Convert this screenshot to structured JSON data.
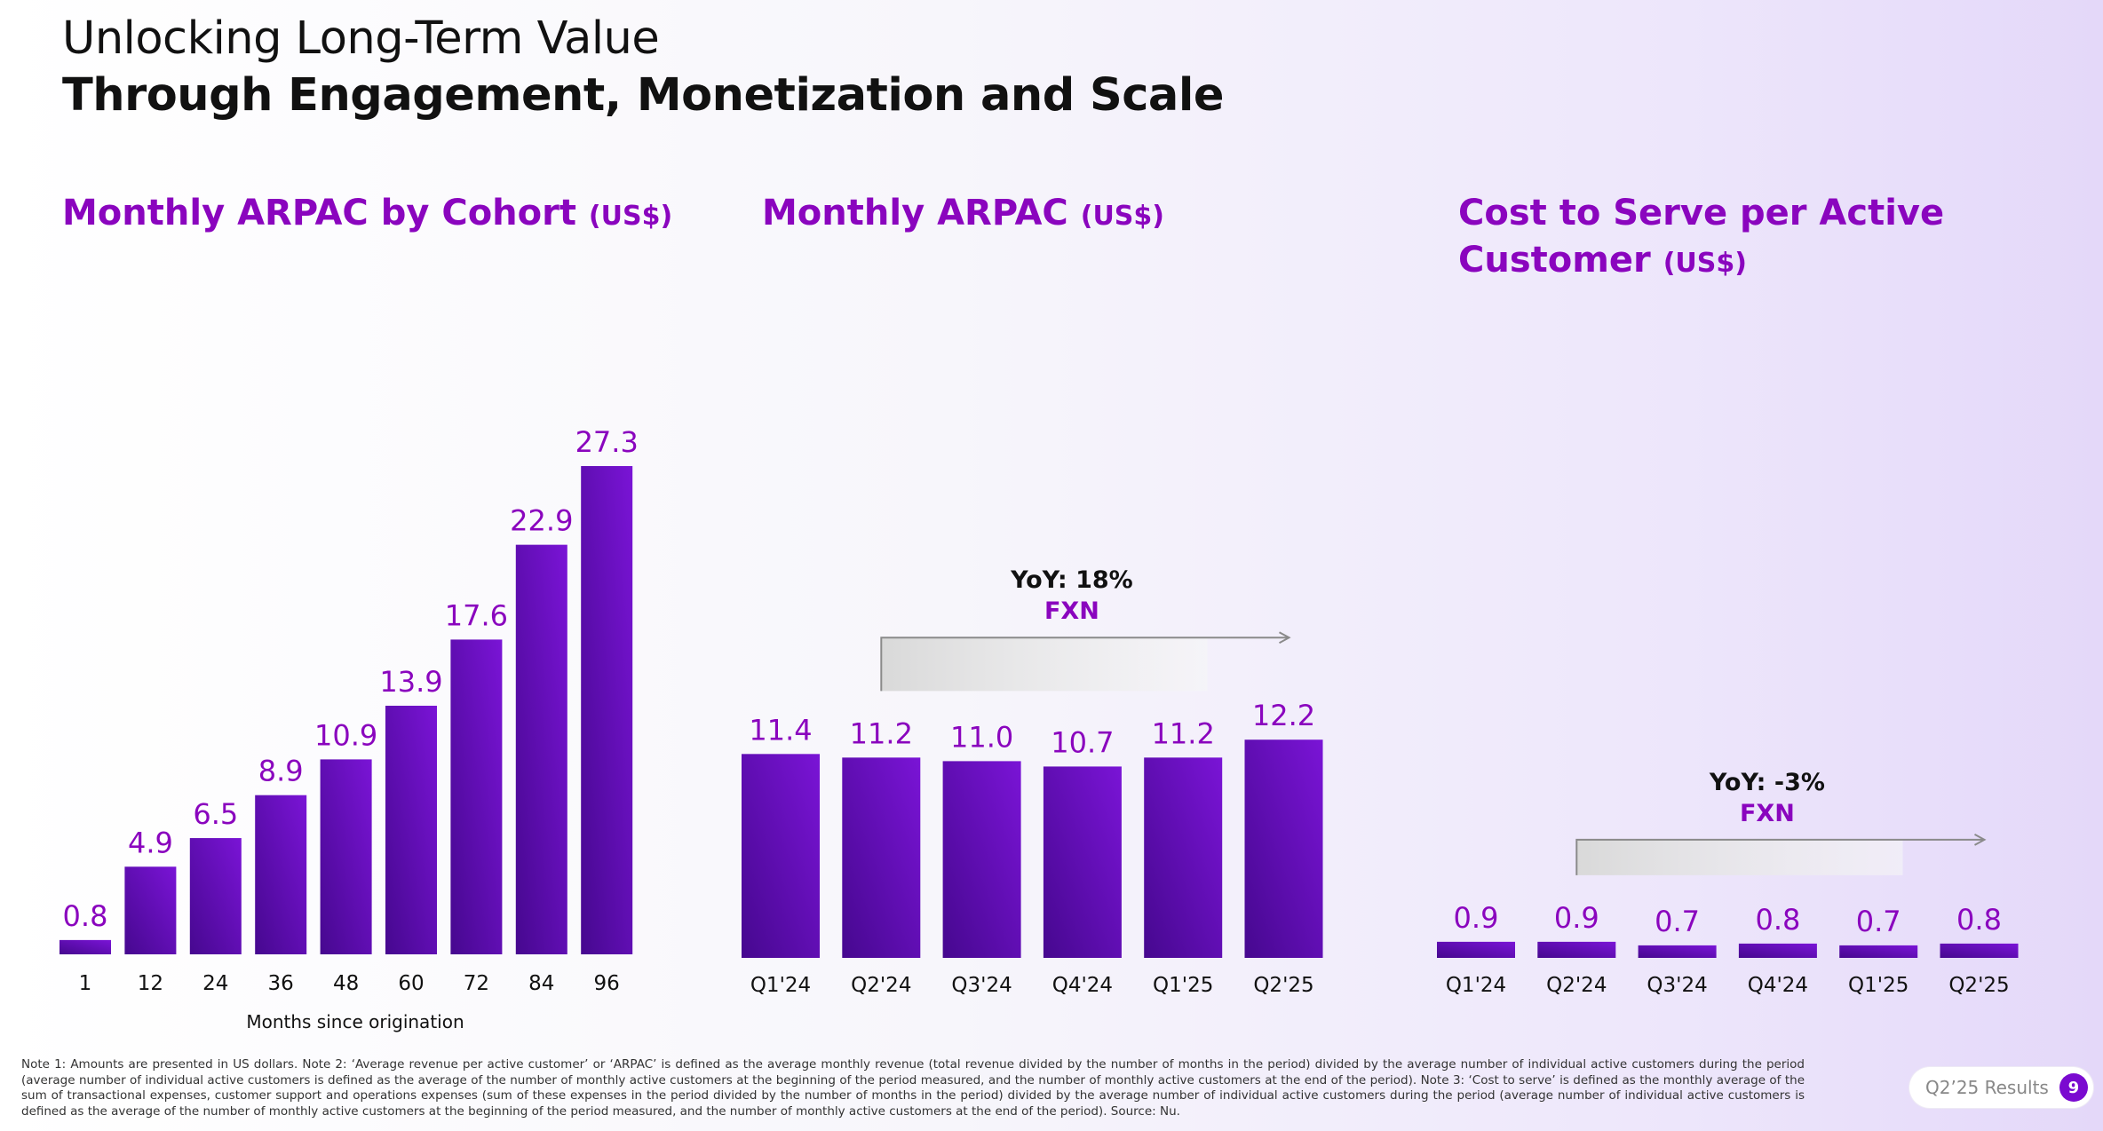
{
  "header": {
    "title_line1": "Unlocking Long-Term Value",
    "title_line2": "Through Engagement, Monetization and Scale"
  },
  "colors": {
    "accent": "#8a05be",
    "bar_light": "#7a14d6",
    "bar_dark": "#46088f"
  },
  "chart_data": [
    {
      "type": "bar",
      "title": "Monthly ARPAC by Cohort",
      "unit": "(US$)",
      "categories": [
        "1",
        "12",
        "24",
        "36",
        "48",
        "60",
        "72",
        "84",
        "96"
      ],
      "values": [
        0.8,
        4.9,
        6.5,
        8.9,
        10.9,
        13.9,
        17.6,
        22.9,
        27.3
      ],
      "value_labels": [
        "0.8",
        "4.9",
        "6.5",
        "8.9",
        "10.9",
        "13.9",
        "17.6",
        "22.9",
        "27.3"
      ],
      "xlabel": "Months since origination",
      "ylabel": "",
      "ylim": [
        0,
        27.3
      ],
      "grid": false
    },
    {
      "type": "bar",
      "title": "Monthly ARPAC",
      "unit": "(US$)",
      "categories": [
        "Q1'24",
        "Q2'24",
        "Q3'24",
        "Q4'24",
        "Q1'25",
        "Q2'25"
      ],
      "values": [
        11.4,
        11.2,
        11.0,
        10.7,
        11.2,
        12.2
      ],
      "value_labels": [
        "11.4",
        "11.2",
        "11.0",
        "10.7",
        "11.2",
        "12.2"
      ],
      "xlabel": "",
      "ylabel": "",
      "ylim": [
        0,
        27.3
      ],
      "grid": false,
      "annotation": {
        "text": "YoY: 18%",
        "subtext": "FXN",
        "from": "Q2'24",
        "to": "Q2'25"
      }
    },
    {
      "type": "bar",
      "title": "Cost to Serve per Active Customer",
      "unit": "(US$)",
      "categories": [
        "Q1'24",
        "Q2'24",
        "Q3'24",
        "Q4'24",
        "Q1'25",
        "Q2'25"
      ],
      "values": [
        0.9,
        0.9,
        0.7,
        0.8,
        0.7,
        0.8
      ],
      "value_labels": [
        "0.9",
        "0.9",
        "0.7",
        "0.8",
        "0.7",
        "0.8"
      ],
      "xlabel": "",
      "ylabel": "",
      "ylim": [
        0,
        27.3
      ],
      "grid": false,
      "annotation": {
        "text": "YoY: -3%",
        "subtext": "FXN",
        "from": "Q2'24",
        "to": "Q2'25"
      }
    }
  ],
  "footer": {
    "note": "Note 1: Amounts are presented in US dollars. Note 2: ‘Average revenue per active customer’ or ‘ARPAC’ is defined as the average monthly revenue (total revenue divided by the number of months in the period) divided by the average number of individual active customers during the period (average number of individual active customers is defined as the average of the number of monthly active customers at the beginning of the period measured, and the number of monthly active customers at the end of the period). Note 3: ‘Cost to serve’ is defined as the monthly average of the sum of transactional expenses, customer support and operations expenses (sum of these expenses in the period divided by the number of months in the period) divided by the average number of individual active customers during the period (average number of individual active customers is defined as the average of the number of monthly active customers at the beginning of the period measured, and the number of monthly active customers at the end of the period). Source: Nu.",
    "badge_label": "Q2’25 Results",
    "page_number": "9"
  }
}
